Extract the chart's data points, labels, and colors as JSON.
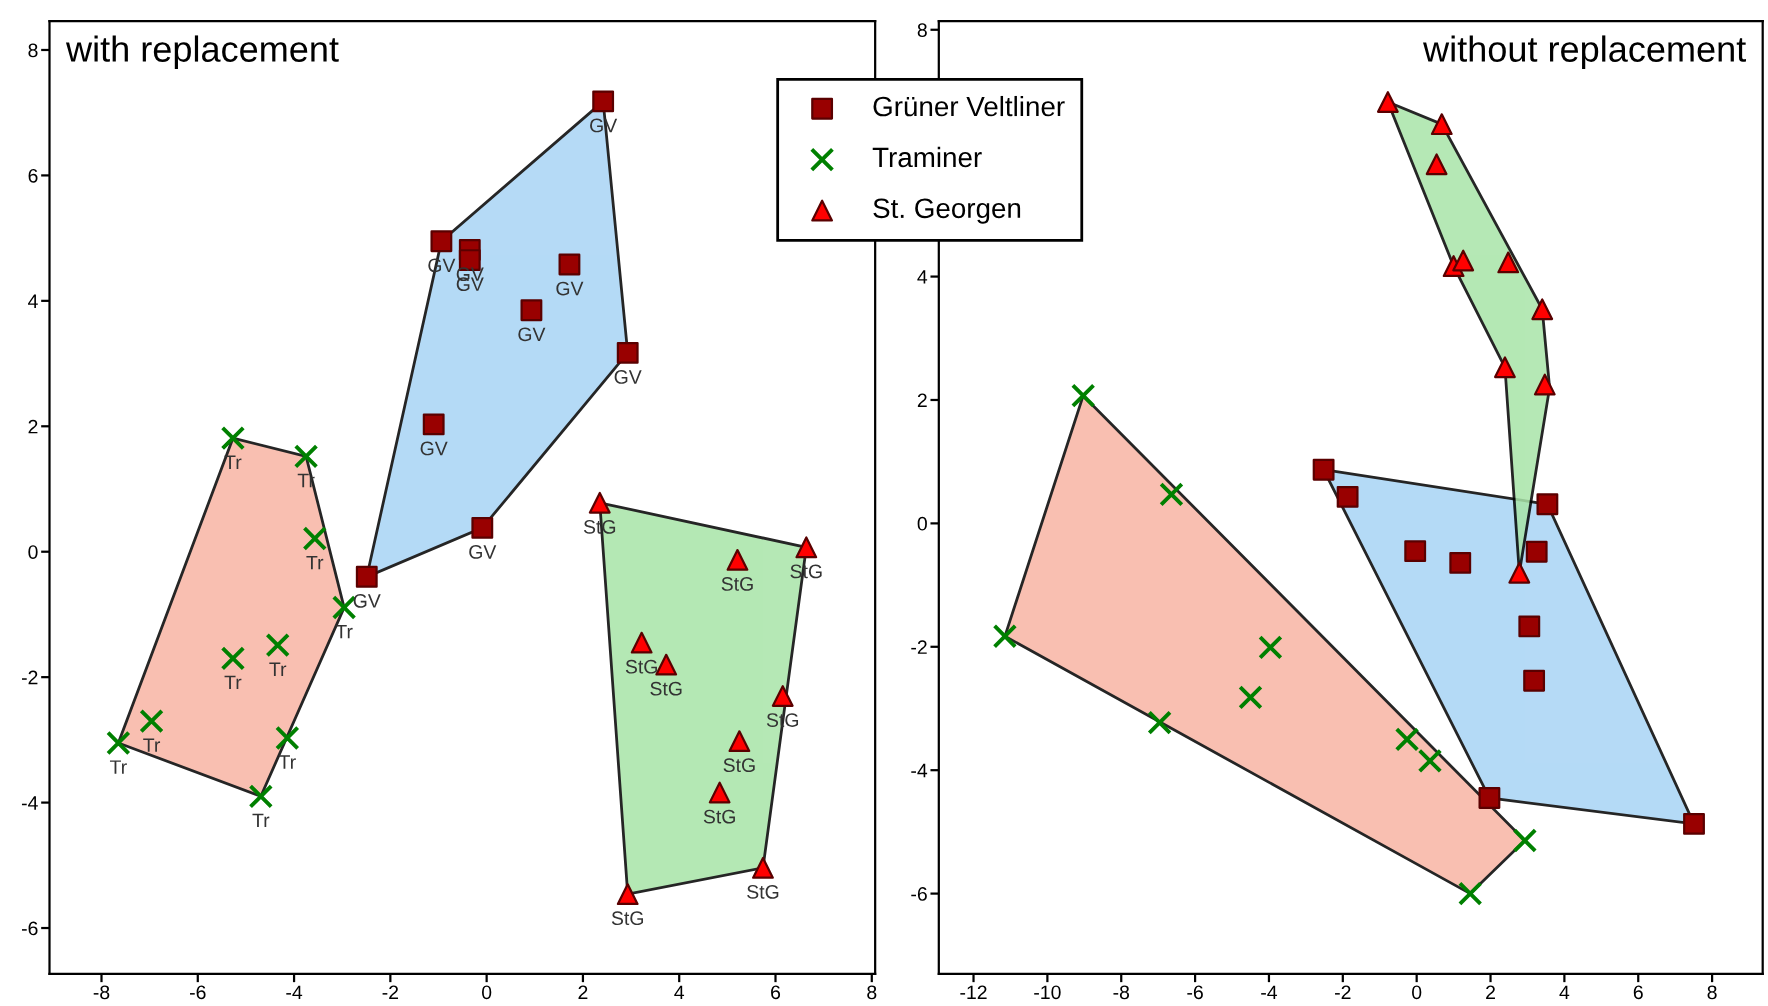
{
  "chart_data": [
    {
      "type": "scatter",
      "title": "with replacement",
      "xlim": [
        -9.08,
        8.07
      ],
      "ylim": [
        -6.73,
        8.46
      ],
      "xticks": [
        -8,
        -6,
        -4,
        -2,
        0,
        2,
        4,
        6,
        8
      ],
      "yticks": [
        -6,
        -4,
        -2,
        0,
        2,
        4,
        6,
        8
      ],
      "grid": false,
      "legend": "top right",
      "series": [
        {
          "type": "area",
          "color": "#a8d4f5",
          "x": [
            2.42,
            2.93,
            -0.09,
            -2.49,
            -0.94
          ],
          "values": [
            7.18,
            3.17,
            0.38,
            -0.4,
            4.95
          ]
        },
        {
          "type": "area",
          "color": "#f8b4a4",
          "x": [
            -5.27,
            -3.75,
            -2.96,
            -4.69,
            -7.65
          ],
          "values": [
            1.81,
            1.52,
            -0.89,
            -3.9,
            -3.05
          ]
        },
        {
          "type": "area",
          "color": "#a8e4a8",
          "x": [
            2.35,
            6.64,
            5.74,
            2.93
          ],
          "values": [
            0.78,
            0.07,
            -5.04,
            -5.46
          ]
        },
        {
          "name": "Grüner Veltliner",
          "color": "#990000",
          "marker": "square",
          "x": [
            2.42,
            -0.94,
            -0.35,
            -0.35,
            1.72,
            0.93,
            2.93,
            -1.1,
            -0.09,
            -2.49
          ],
          "values": [
            7.18,
            4.95,
            4.81,
            4.65,
            4.58,
            3.85,
            3.17,
            2.03,
            0.38,
            -0.4
          ]
        },
        {
          "name": "Traminer",
          "color": "#008000",
          "marker": "cross",
          "x": [
            -5.27,
            -3.75,
            -3.57,
            -2.96,
            -5.27,
            -4.34,
            -6.96,
            -4.14,
            -7.65,
            -4.69
          ],
          "values": [
            1.81,
            1.52,
            0.21,
            -0.89,
            -1.7,
            -1.49,
            -2.7,
            -2.97,
            -3.05,
            -3.9
          ]
        },
        {
          "name": "St. Georgen",
          "color": "#ff0000",
          "marker": "triangle",
          "x": [
            2.35,
            6.64,
            5.21,
            3.22,
            3.73,
            6.15,
            5.25,
            4.84,
            5.74,
            2.93
          ],
          "values": [
            0.78,
            0.07,
            -0.13,
            -1.45,
            -1.8,
            -2.3,
            -3.02,
            -3.84,
            -5.04,
            -5.46
          ]
        }
      ],
      "annotations": [
        {
          "text": "GV",
          "x": 2.42,
          "y": 7.18
        },
        {
          "text": "GV",
          "x": -0.94,
          "y": 4.95
        },
        {
          "text": "GV",
          "x": -0.35,
          "y": 4.81
        },
        {
          "text": "GV",
          "x": -0.35,
          "y": 4.65
        },
        {
          "text": "GV",
          "x": 1.72,
          "y": 4.58
        },
        {
          "text": "GV",
          "x": 0.93,
          "y": 3.85
        },
        {
          "text": "GV",
          "x": 2.93,
          "y": 3.17
        },
        {
          "text": "GV",
          "x": -1.1,
          "y": 2.03
        },
        {
          "text": "GV",
          "x": -0.09,
          "y": 0.38
        },
        {
          "text": "GV",
          "x": -2.49,
          "y": -0.4
        },
        {
          "text": "Tr",
          "x": -5.27,
          "y": 1.81
        },
        {
          "text": "Tr",
          "x": -3.75,
          "y": 1.52
        },
        {
          "text": "Tr",
          "x": -3.57,
          "y": 0.21
        },
        {
          "text": "Tr",
          "x": -2.96,
          "y": -0.89
        },
        {
          "text": "Tr",
          "x": -5.27,
          "y": -1.7
        },
        {
          "text": "Tr",
          "x": -4.34,
          "y": -1.49
        },
        {
          "text": "Tr",
          "x": -6.96,
          "y": -2.7
        },
        {
          "text": "Tr",
          "x": -4.14,
          "y": -2.97
        },
        {
          "text": "Tr",
          "x": -7.65,
          "y": -3.05
        },
        {
          "text": "Tr",
          "x": -4.69,
          "y": -3.9
        },
        {
          "text": "StG",
          "x": 2.35,
          "y": 0.78
        },
        {
          "text": "StG",
          "x": 6.64,
          "y": 0.07
        },
        {
          "text": "StG",
          "x": 5.21,
          "y": -0.13
        },
        {
          "text": "StG",
          "x": 3.22,
          "y": -1.45
        },
        {
          "text": "StG",
          "x": 3.73,
          "y": -1.8
        },
        {
          "text": "StG",
          "x": 6.15,
          "y": -2.3
        },
        {
          "text": "StG",
          "x": 5.25,
          "y": -3.02
        },
        {
          "text": "StG",
          "x": 4.84,
          "y": -3.84
        },
        {
          "text": "StG",
          "x": 5.74,
          "y": -5.04
        },
        {
          "text": "StG",
          "x": 2.93,
          "y": -5.46
        }
      ]
    },
    {
      "type": "scatter",
      "title": "without replacement",
      "xlim": [
        -12.94,
        9.37
      ],
      "ylim": [
        -7.3,
        8.14
      ],
      "xticks": [
        -12,
        -10,
        -8,
        -6,
        -4,
        -2,
        0,
        2,
        4,
        6,
        8
      ],
      "yticks": [
        -6,
        -4,
        -2,
        0,
        2,
        4,
        {
          "value": 6,
          "label": null
        },
        8
      ],
      "grid": false,
      "series": [
        {
          "type": "area",
          "color": "#a8d4f5",
          "x": [
            -2.52,
            3.54,
            7.51,
            1.97
          ],
          "values": [
            0.87,
            0.31,
            -4.87,
            -4.45
          ]
        },
        {
          "type": "area",
          "color": "#f8b4a4",
          "x": [
            -9.03,
            2.93,
            1.45,
            -11.15
          ],
          "values": [
            2.07,
            -5.14,
            -6.0,
            -1.83
          ]
        },
        {
          "type": "area",
          "color": "#a8e4a8",
          "x": [
            -0.78,
            0.68,
            3.4,
            3.6,
            2.78,
            2.39,
            1.0
          ],
          "values": [
            6.83,
            6.47,
            3.47,
            2.2,
            -0.8,
            2.53,
            4.17
          ]
        },
        {
          "color": "#990000",
          "marker": "square",
          "x": [
            -2.52,
            -1.87,
            -0.04,
            1.18,
            3.25,
            3.54,
            3.05,
            3.18,
            1.97,
            7.51
          ],
          "values": [
            0.87,
            0.43,
            -0.45,
            -0.64,
            -0.46,
            0.31,
            -1.67,
            -2.55,
            -4.45,
            -4.87
          ]
        },
        {
          "color": "#008000",
          "marker": "cross",
          "x": [
            -9.03,
            -6.64,
            -11.15,
            -3.96,
            -4.5,
            -6.96,
            -0.26,
            0.36,
            2.93,
            1.45
          ],
          "values": [
            2.07,
            0.47,
            -1.83,
            -2.01,
            -2.82,
            -3.23,
            -3.5,
            -3.85,
            -5.14,
            -6.0
          ]
        },
        {
          "color": "#ff0000",
          "marker": "triangle",
          "x": [
            -0.78,
            0.68,
            0.54,
            1.0,
            1.26,
            2.48,
            3.4,
            2.39,
            3.47,
            2.78
          ],
          "values": [
            6.83,
            6.47,
            5.82,
            4.17,
            4.26,
            4.23,
            3.47,
            2.53,
            2.25,
            -0.8
          ]
        }
      ]
    }
  ]
}
